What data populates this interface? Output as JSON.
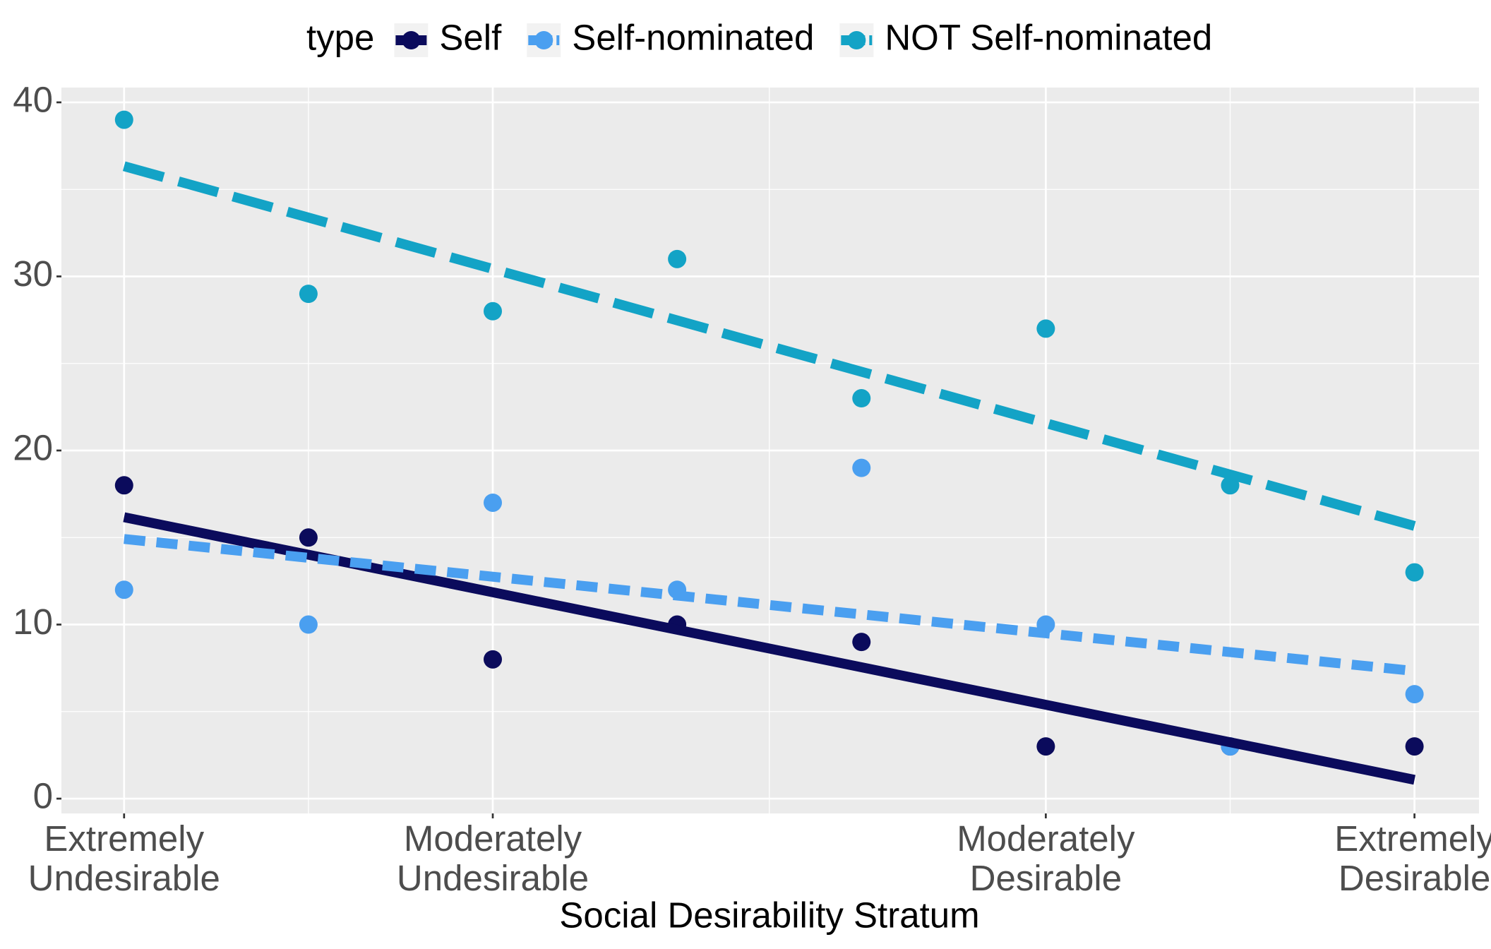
{
  "chart_data": {
    "type": "scatter",
    "x_label": "Social Desirability Stratum",
    "legend_title": "type",
    "legend_position": "top",
    "x": [
      1,
      2,
      3,
      4,
      5,
      6,
      7,
      8
    ],
    "series": [
      {
        "name": "Self",
        "color": "#0b0b5c",
        "line_style": "solid",
        "values": [
          18,
          15,
          8,
          10,
          9,
          3,
          3,
          3
        ]
      },
      {
        "name": "Self-nominated",
        "color": "#4a9ff0",
        "line_style": "dashed",
        "values": [
          12,
          10,
          17,
          12,
          19,
          10,
          3,
          6
        ]
      },
      {
        "name": "NOT Self-nominated",
        "color": "#13a3c6",
        "line_style": "longdash",
        "values": [
          39,
          29,
          28,
          31,
          23,
          27,
          18,
          13
        ]
      }
    ],
    "trend": "linear",
    "xlim": [
      0.66,
      8.35
    ],
    "xticks": [
      {
        "value": 1,
        "label": "Extremely\nUndesirable"
      },
      {
        "value": 3,
        "label": "Moderately\nUndesirable"
      },
      {
        "value": 6,
        "label": "Moderately\nDesirable"
      },
      {
        "value": 8,
        "label": "Extremely\nDesirable"
      }
    ],
    "ylim": [
      -0.85,
      40.85
    ],
    "yticks": [
      0,
      10,
      20,
      30,
      40
    ],
    "grid": true
  }
}
